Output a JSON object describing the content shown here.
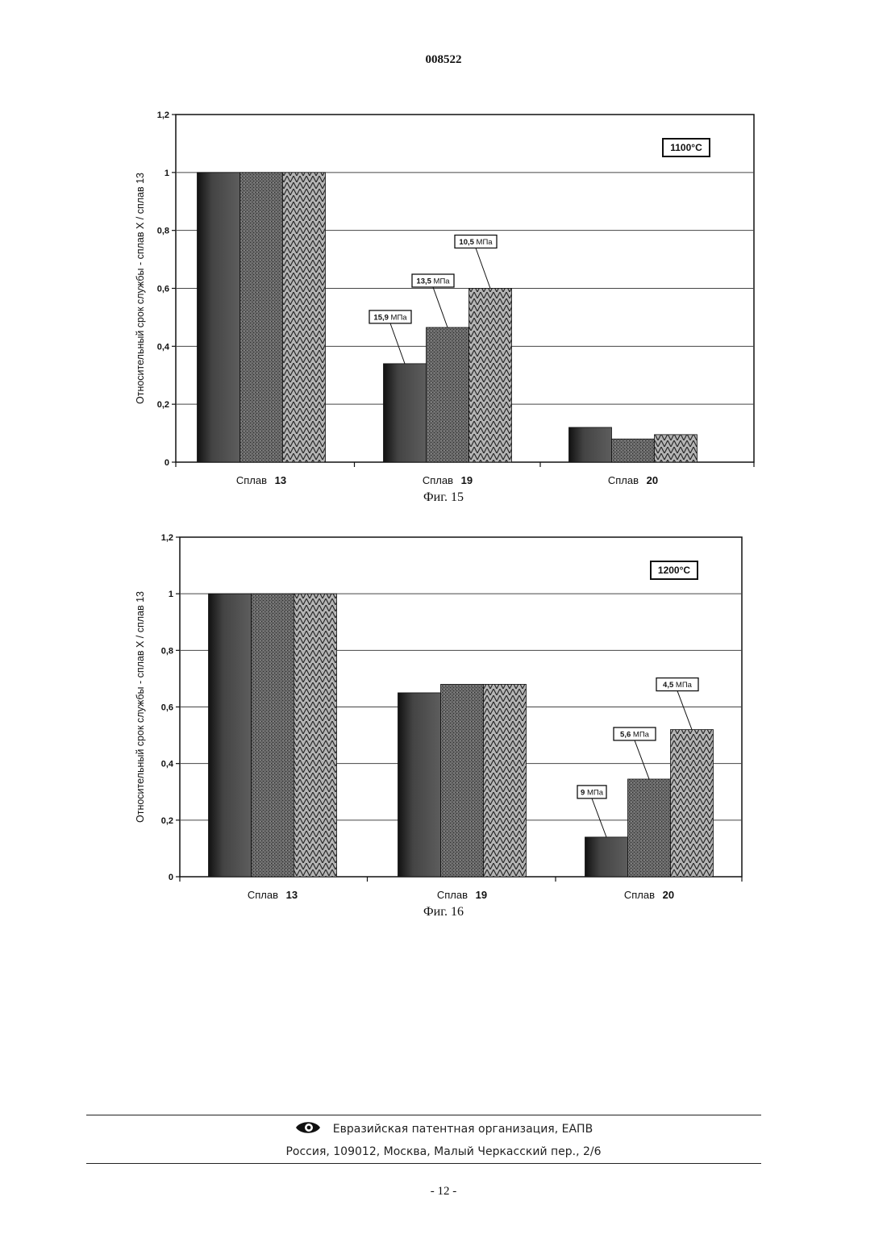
{
  "header": {
    "doc_number": "008522"
  },
  "figures": [
    {
      "caption": "Фиг. 15"
    },
    {
      "caption": "Фиг. 16"
    }
  ],
  "chart_data": [
    {
      "type": "bar",
      "temperature_label": "1100°C",
      "ylabel": "Относительный срок службы - сплав X / сплав 13",
      "ylim": [
        0,
        1.2
      ],
      "yticks": [
        "0",
        "0,2",
        "0,4",
        "0,6",
        "0,8",
        "1",
        "1,2"
      ],
      "grid": true,
      "categories": [
        {
          "prefix": "Сплав",
          "number": "13"
        },
        {
          "prefix": "Сплав",
          "number": "19"
        },
        {
          "prefix": "Сплав",
          "number": "20"
        }
      ],
      "series": [
        {
          "values": [
            1.0,
            0.34,
            0.12
          ],
          "color": "#3a3a3a"
        },
        {
          "values": [
            1.0,
            0.465,
            0.08
          ],
          "color": "#5a5a5a"
        },
        {
          "values": [
            1.0,
            0.6,
            0.095
          ],
          "color": "#8a8a8a"
        }
      ],
      "annotations": [
        {
          "category_index": 1,
          "series_index": 0,
          "value": "15,9",
          "unit": "МПа"
        },
        {
          "category_index": 1,
          "series_index": 1,
          "value": "13,5",
          "unit": "МПа"
        },
        {
          "category_index": 1,
          "series_index": 2,
          "value": "10,5",
          "unit": "МПа"
        }
      ]
    },
    {
      "type": "bar",
      "temperature_label": "1200°C",
      "ylabel": "Относительный срок службы - сплав X / сплав 13",
      "ylim": [
        0,
        1.2
      ],
      "yticks": [
        "0",
        "0,2",
        "0,4",
        "0,6",
        "0,8",
        "1",
        "1,2"
      ],
      "grid": true,
      "categories": [
        {
          "prefix": "Сплав",
          "number": "13"
        },
        {
          "prefix": "Сплав",
          "number": "19"
        },
        {
          "prefix": "Сплав",
          "number": "20"
        }
      ],
      "series": [
        {
          "values": [
            1.0,
            0.65,
            0.14
          ],
          "color": "#3a3a3a"
        },
        {
          "values": [
            1.0,
            0.68,
            0.345
          ],
          "color": "#5a5a5a"
        },
        {
          "values": [
            1.0,
            0.68,
            0.52
          ],
          "color": "#8a8a8a"
        }
      ],
      "annotations": [
        {
          "category_index": 2,
          "series_index": 0,
          "value": "9",
          "unit": "МПа"
        },
        {
          "category_index": 2,
          "series_index": 1,
          "value": "5,6",
          "unit": "МПа"
        },
        {
          "category_index": 2,
          "series_index": 2,
          "value": "4,5",
          "unit": "МПа"
        }
      ]
    }
  ],
  "footer": {
    "org_name": "Евразийская патентная организация, ЕАПВ",
    "address": "Россия, 109012, Москва, Малый Черкасский пер., 2/6",
    "logo_icon": "eapo-eye-logo-icon"
  },
  "page_number": "- 12 -"
}
